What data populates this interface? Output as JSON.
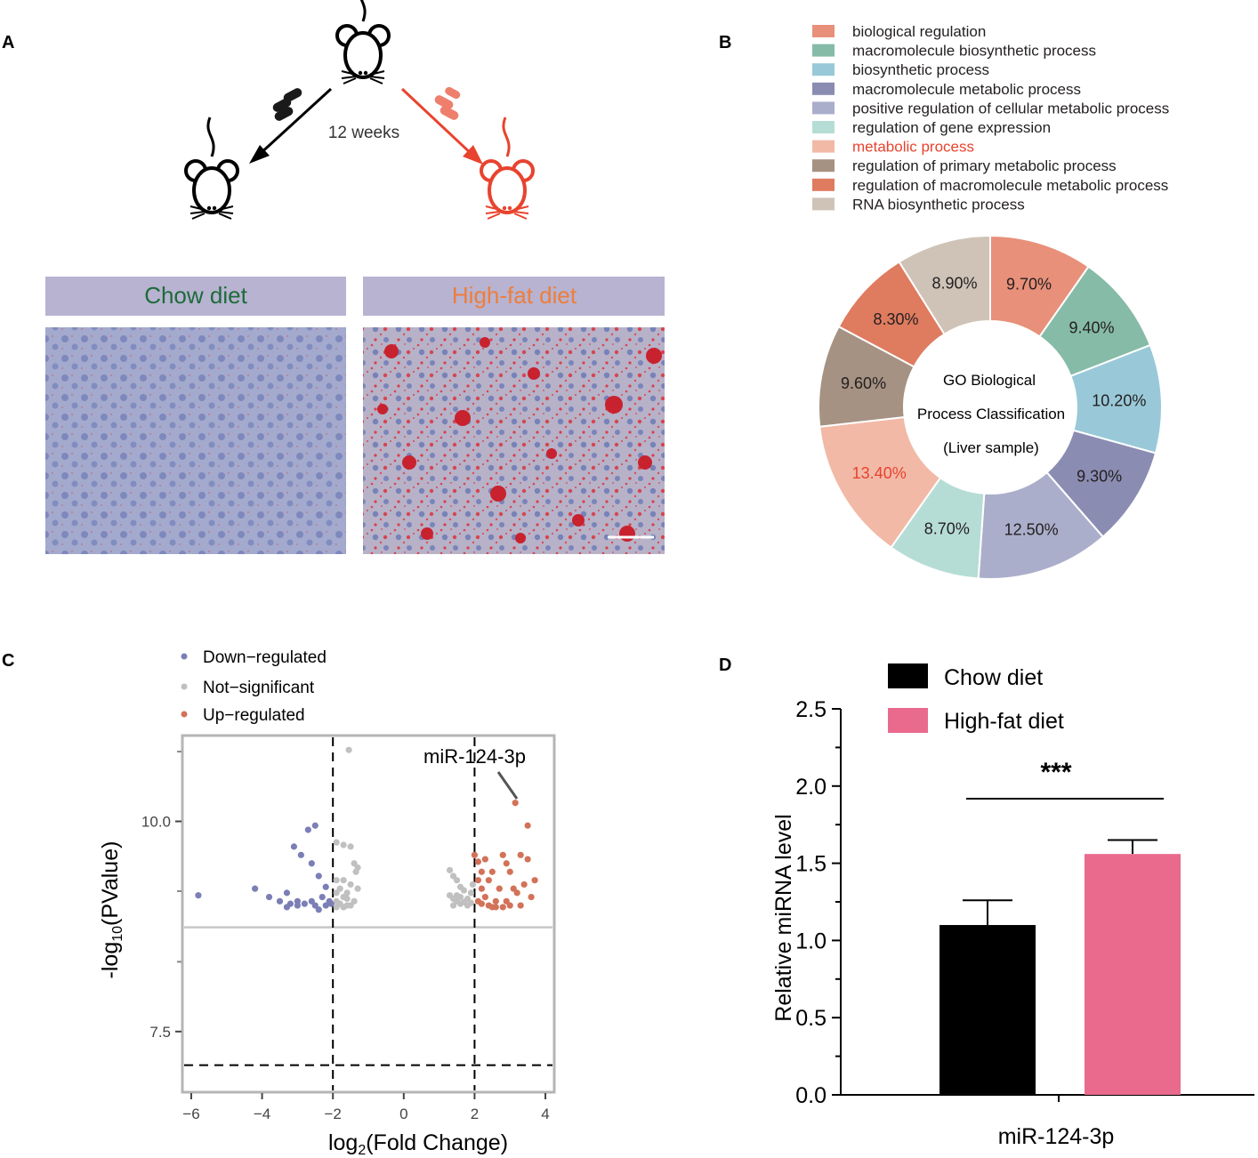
{
  "colors": {
    "chow_title": "#1e6b3a",
    "hfd_title": "#ef7d3b",
    "highlight_red": "#e8432e",
    "label_bar": "#b7b3d1",
    "down": "#7b7fb5",
    "ns": "#c0c0c0",
    "up": "#d27259",
    "bar_chow": "#000000",
    "bar_hfd": "#e96a8d"
  },
  "panels": {
    "a": "A",
    "b": "B",
    "c": "C",
    "d": "D"
  },
  "panel_a": {
    "duration": "12 weeks",
    "chow_label": "Chow diet",
    "hfd_label": "High-fat diet"
  },
  "chart_data": [
    {
      "type": "pie",
      "panel": "B",
      "title_lines": [
        "GO Biological",
        "Process Classification",
        "(Liver sample)"
      ],
      "slices": [
        {
          "label": "biological  regulation",
          "value": 9.7,
          "display": "9.70%",
          "color": "#e8907a"
        },
        {
          "label": "macromolecule biosynthetic process",
          "value": 9.4,
          "display": "9.40%",
          "color": "#86bba8"
        },
        {
          "label": "biosynthetic process",
          "value": 10.2,
          "display": "10.20%",
          "color": "#99c9d8"
        },
        {
          "label": "macromolecule metabolic process",
          "value": 9.3,
          "display": "9.30%",
          "color": "#8a8cb2"
        },
        {
          "label": "positive regulation of cellular metabolic process",
          "value": 12.5,
          "display": "12.50%",
          "color": "#abaecb"
        },
        {
          "label": "regulation of gene expression",
          "value": 8.7,
          "display": "8.70%",
          "color": "#b6ddd5"
        },
        {
          "label": "metabolic process",
          "value": 13.4,
          "display": "13.40%",
          "color": "#f2b9a7",
          "highlight": true
        },
        {
          "label": "regulation of primary metabolic process",
          "value": 9.6,
          "display": "9.60%",
          "color": "#a59283"
        },
        {
          "label": "regulation of macromolecule metabolic process",
          "value": 8.3,
          "display": "8.30%",
          "color": "#df7b5f"
        },
        {
          "label": "RNA biosynthetic process",
          "value": 8.9,
          "display": "8.90%",
          "color": "#cfc3b7"
        }
      ]
    },
    {
      "type": "scatter",
      "panel": "C",
      "xlabel_base": "log",
      "xlabel_sub": "2",
      "xlabel_rest": "(Fold Change)",
      "ylabel_base": "-log",
      "ylabel_sub": "10",
      "ylabel_rest": "(PValue)",
      "xlim": [
        -6.2,
        4.2
      ],
      "ylim": [
        6.8,
        11.0
      ],
      "xticks": [
        -6,
        -4,
        -2,
        0,
        2,
        4
      ],
      "xtick_labels": [
        "−6",
        "−4",
        "−2",
        "0",
        "2",
        "4"
      ],
      "yticks": [
        7.5,
        10.0
      ],
      "ytick_labels": [
        "7.5",
        "10.0"
      ],
      "yticks_minor": [
        8.33,
        9.17,
        10.83
      ],
      "vlines": [
        -2,
        2
      ],
      "hline_threshold": 8.74,
      "hline_dashed": 7.1,
      "annotation": {
        "label": "miR-124-3p",
        "x": 3.15,
        "y": 10.22
      },
      "legend": [
        {
          "key": "down",
          "label": "Down−regulated"
        },
        {
          "key": "ns",
          "label": "Not−significant"
        },
        {
          "key": "up",
          "label": "Up−regulated"
        }
      ],
      "series": {
        "down": [
          [
            -5.8,
            9.12
          ],
          [
            -4.2,
            9.2
          ],
          [
            -3.8,
            9.1
          ],
          [
            -3.5,
            9.05
          ],
          [
            -3.3,
            9.15
          ],
          [
            -3.1,
            9.7
          ],
          [
            -2.9,
            9.6
          ],
          [
            -3.0,
            9.05
          ],
          [
            -3.2,
            9.02
          ],
          [
            -2.8,
            9.02
          ],
          [
            -2.7,
            9.9
          ],
          [
            -2.5,
            9.95
          ],
          [
            -2.6,
            9.5
          ],
          [
            -2.4,
            9.35
          ],
          [
            -2.6,
            9.05
          ],
          [
            -2.4,
            8.95
          ],
          [
            -2.3,
            9.1
          ],
          [
            -2.2,
            9.22
          ],
          [
            -2.1,
            9.05
          ],
          [
            -2.05,
            9.02
          ],
          [
            -2.2,
            9.0
          ],
          [
            -2.5,
            9.0
          ],
          [
            -3.0,
            9.0
          ],
          [
            -3.3,
            8.98
          ]
        ],
        "ns": [
          [
            -1.55,
            10.85
          ],
          [
            -1.9,
            9.75
          ],
          [
            -1.7,
            9.72
          ],
          [
            -1.5,
            9.7
          ],
          [
            -1.9,
            9.3
          ],
          [
            -1.7,
            9.3
          ],
          [
            -1.4,
            9.5
          ],
          [
            -1.3,
            9.45
          ],
          [
            -1.35,
            9.4
          ],
          [
            -1.5,
            9.25
          ],
          [
            -1.3,
            9.2
          ],
          [
            -1.8,
            9.2
          ],
          [
            -1.9,
            9.15
          ],
          [
            -1.6,
            9.15
          ],
          [
            -1.7,
            9.1
          ],
          [
            -1.9,
            9.05
          ],
          [
            -1.8,
            9.02
          ],
          [
            -1.6,
            9.0
          ],
          [
            -1.5,
            9.0
          ],
          [
            -1.7,
            8.98
          ],
          [
            -1.9,
            8.98
          ],
          [
            -1.4,
            9.05
          ],
          [
            -1.6,
            9.08
          ],
          [
            1.3,
            9.42
          ],
          [
            1.4,
            9.35
          ],
          [
            1.5,
            9.3
          ],
          [
            1.6,
            9.22
          ],
          [
            1.7,
            9.18
          ],
          [
            1.9,
            9.15
          ],
          [
            1.5,
            9.12
          ],
          [
            1.6,
            9.1
          ],
          [
            1.8,
            9.08
          ],
          [
            1.4,
            9.08
          ],
          [
            1.5,
            9.05
          ],
          [
            1.7,
            9.04
          ],
          [
            1.9,
            9.03
          ],
          [
            1.3,
            9.12
          ],
          [
            1.6,
            9.02
          ],
          [
            1.8,
            9.0
          ],
          [
            1.4,
            9.0
          ],
          [
            1.95,
            9.25
          ]
        ],
        "up": [
          [
            2.0,
            9.6
          ],
          [
            2.1,
            9.52
          ],
          [
            2.2,
            9.4
          ],
          [
            2.3,
            9.55
          ],
          [
            2.4,
            9.3
          ],
          [
            2.1,
            9.3
          ],
          [
            2.2,
            9.2
          ],
          [
            2.3,
            9.1
          ],
          [
            2.1,
            9.05
          ],
          [
            2.2,
            9.02
          ],
          [
            2.4,
            9.0
          ],
          [
            2.5,
            8.98
          ],
          [
            2.6,
            9.05
          ],
          [
            2.7,
            9.2
          ],
          [
            2.8,
            9.6
          ],
          [
            2.9,
            9.5
          ],
          [
            3.0,
            9.4
          ],
          [
            3.1,
            9.2
          ],
          [
            3.2,
            9.15
          ],
          [
            3.0,
            9.0
          ],
          [
            2.8,
            8.98
          ],
          [
            2.6,
            8.98
          ],
          [
            3.15,
            10.22
          ],
          [
            3.5,
            9.95
          ],
          [
            3.7,
            9.3
          ],
          [
            3.4,
            9.25
          ],
          [
            3.6,
            9.1
          ],
          [
            3.3,
            9.0
          ],
          [
            2.9,
            9.05
          ],
          [
            2.5,
            9.4
          ],
          [
            3.3,
            9.6
          ],
          [
            3.5,
            9.55
          ]
        ]
      }
    },
    {
      "type": "bar",
      "panel": "D",
      "categories": [
        "miR-124-3p"
      ],
      "series": [
        {
          "name": "Chow diet",
          "value": 1.1,
          "error": 0.16
        },
        {
          "name": "High-fat diet",
          "value": 1.56,
          "error": 0.09
        }
      ],
      "ylabel": "Relative miRNA level",
      "ylim": [
        0,
        2.5
      ],
      "yticks": [
        "0.0",
        "0.5",
        "1.0",
        "1.5",
        "2.0",
        "2.5"
      ],
      "significance": "***"
    }
  ]
}
